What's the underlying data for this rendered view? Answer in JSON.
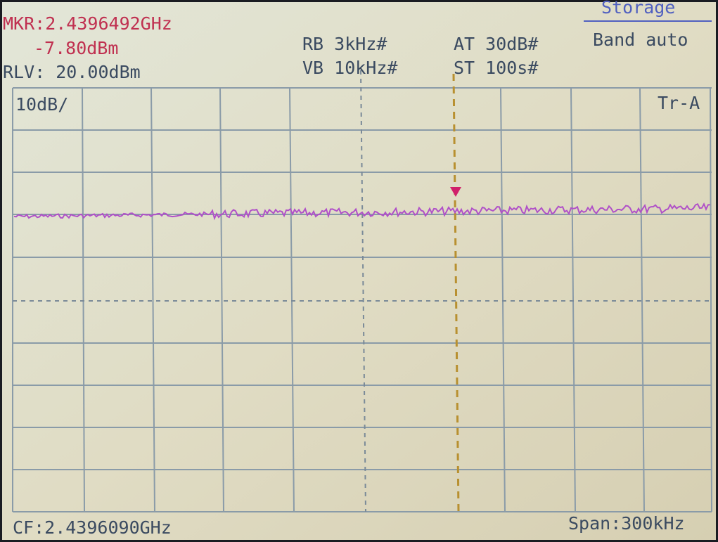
{
  "header": {
    "marker_freq": "MKR:2.4396492GHz",
    "marker_level": "-7.80dBm",
    "ref_level": "RLV: 20.00dBm",
    "rbw": "RB 3kHz#",
    "vbw": "VB 10kHz#",
    "attenuation": "AT 30dB#",
    "sweep_time": "ST 100s#",
    "mode": "Storage",
    "band": "Band auto"
  },
  "plot": {
    "scale": "10dB/",
    "trace": "Tr-A"
  },
  "footer": {
    "center_freq": "CF:2.4396090GHz",
    "span": "Span:300kHz"
  }
}
